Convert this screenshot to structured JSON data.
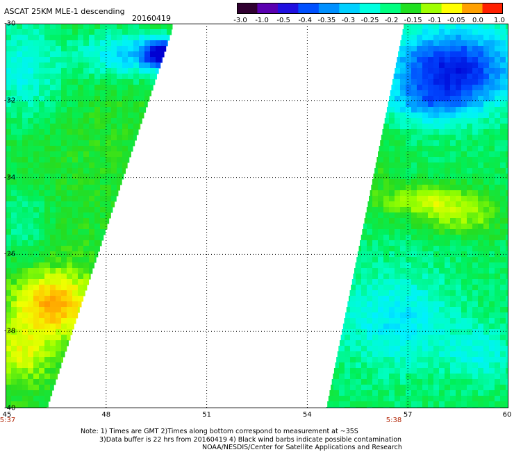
{
  "header": {
    "title": "ASCAT 25KM MLE-1 descending",
    "date": "20160419"
  },
  "colorbar": {
    "labels": [
      "-3.0",
      "-1.0",
      "-0.5",
      "-0.4",
      "-0.35",
      "-0.3",
      "-0.25",
      "-0.2",
      "-0.15",
      "-0.1",
      "-0.05",
      "0.0",
      "1.0"
    ],
    "colors": [
      "#300030",
      "#5a00b0",
      "#2010e0",
      "#0050ff",
      "#0090ff",
      "#00d0ff",
      "#00ffe0",
      "#00ff80",
      "#20e020",
      "#a0ff00",
      "#ffff00",
      "#ffa000",
      "#ff2000"
    ]
  },
  "map": {
    "lat_labels": [
      "-30",
      "-32",
      "-34",
      "-36",
      "-38",
      "-40"
    ],
    "lon_labels": [
      "45",
      "48",
      "51",
      "54",
      "57",
      "60"
    ],
    "lat_range": [
      -40,
      -30
    ],
    "lon_range": [
      45,
      60
    ],
    "grid": true,
    "swath_times": [
      "5:37",
      "5:38"
    ]
  },
  "notes": {
    "line1": "Note: 1) Times are GMT 2)Times along bottom correspond to measurement at ~35S",
    "line2": "3)Data buffer is 22 hrs from 20160419 4) Black wind barbs indicate possible contamination",
    "line3": "NOAA/NESDIS/Center for Satellite Applications and Research"
  }
}
